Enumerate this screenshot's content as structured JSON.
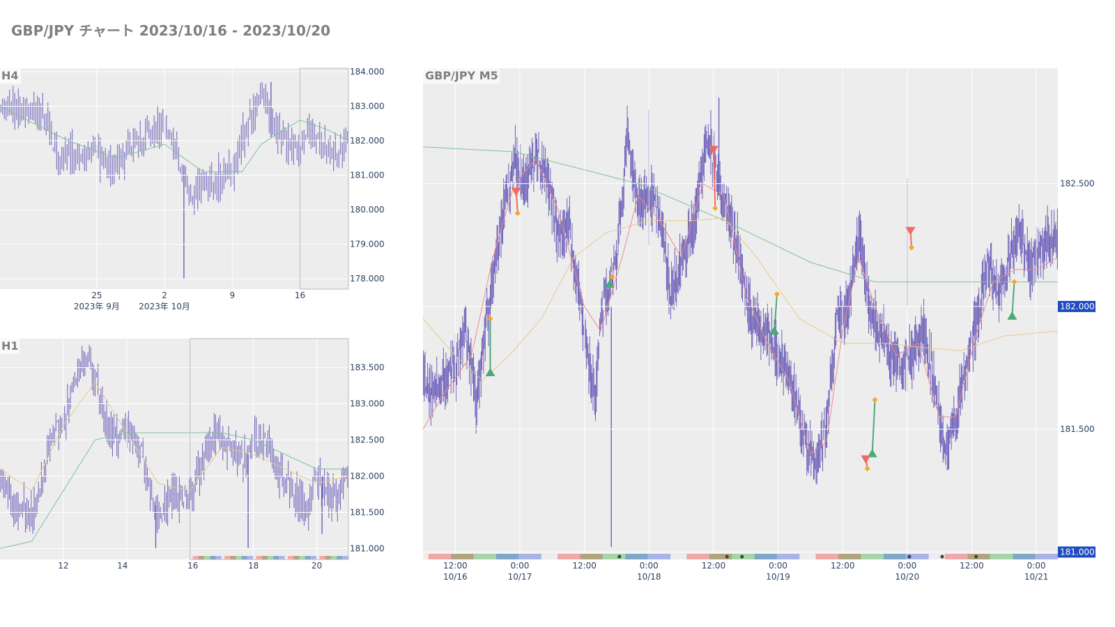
{
  "page": {
    "title": "GBP/JPY チャート 2023/10/16 - 2023/10/20"
  },
  "colors": {
    "panel_bg": "#ededed",
    "grid": "#ffffff",
    "candle": "#6a5db8",
    "ma_short": "#f08a8a",
    "ma_mid": "#e8c98a",
    "ma_long": "#7fbf9f",
    "buy_marker": "#4da87a",
    "sell_marker": "#ef6a62",
    "exit_marker": "#f5a623",
    "price_label_bg": "#1f4bbf",
    "session_colors": [
      "#f0a8a8",
      "#b2a47d",
      "#a8d5a8",
      "#7fa8c8",
      "#a8b4e8"
    ]
  },
  "chart_data": [
    {
      "type": "candlestick",
      "panel": "H4",
      "title": "H4",
      "y_ticks": [
        "178.000",
        "179.000",
        "180.000",
        "181.000",
        "182.000",
        "183.000",
        "184.000"
      ],
      "ylim": [
        177.7,
        184.1
      ],
      "x_tick_labels": [
        "25",
        "2",
        "9",
        "16"
      ],
      "x_month_labels": [
        "2023年 9月",
        "2023年 10月"
      ],
      "x_range": [
        "2023-09-15",
        "2023-10-21"
      ],
      "highlight_range": [
        "2023-10-16",
        "2023-10-21"
      ],
      "close_path": [
        [
          "2023-09-15",
          183.0
        ],
        [
          "2023-09-18",
          182.9
        ],
        [
          "2023-09-20",
          182.6
        ],
        [
          "2023-09-21",
          181.4
        ],
        [
          "2023-09-22",
          181.7
        ],
        [
          "2023-09-25",
          181.6
        ],
        [
          "2023-09-27",
          181.1
        ],
        [
          "2023-09-28",
          181.5
        ],
        [
          "2023-09-29",
          182.0
        ],
        [
          "2023-10-02",
          182.4
        ],
        [
          "2023-10-03",
          181.8
        ],
        [
          "2023-10-04",
          180.9
        ],
        [
          "2023-10-05",
          180.3
        ],
        [
          "2023-10-06",
          180.7
        ],
        [
          "2023-10-09",
          181.1
        ],
        [
          "2023-10-10",
          182.0
        ],
        [
          "2023-10-11",
          182.6
        ],
        [
          "2023-10-12",
          183.5
        ],
        [
          "2023-10-13",
          182.5
        ],
        [
          "2023-10-16",
          181.6
        ],
        [
          "2023-10-17",
          182.3
        ],
        [
          "2023-10-18",
          181.9
        ],
        [
          "2023-10-19",
          181.8
        ],
        [
          "2023-10-20",
          181.6
        ],
        [
          "2023-10-21",
          182.1
        ]
      ],
      "extreme_wicks": [
        {
          "x": "2023-10-04",
          "high": 181.3,
          "low": 178.0
        },
        {
          "x": "2023-10-13",
          "high": 183.7,
          "low": 182.1
        }
      ],
      "ma_long": [
        [
          "2023-09-15",
          183.0
        ],
        [
          "2023-09-22",
          182.0
        ],
        [
          "2023-09-27",
          181.5
        ],
        [
          "2023-10-02",
          181.9
        ],
        [
          "2023-10-06",
          181.1
        ],
        [
          "2023-10-10",
          181.1
        ],
        [
          "2023-10-12",
          181.9
        ],
        [
          "2023-10-16",
          182.6
        ],
        [
          "2023-10-19",
          182.3
        ],
        [
          "2023-10-21",
          182.0
        ]
      ]
    },
    {
      "type": "candlestick",
      "panel": "H1",
      "title": "H1",
      "y_ticks": [
        "181.000",
        "181.500",
        "182.000",
        "182.500",
        "183.000",
        "183.500"
      ],
      "ylim": [
        180.85,
        183.9
      ],
      "x_tick_labels": [
        "12",
        "14",
        "16",
        "18",
        "20"
      ],
      "x_range": [
        "2023-10-10",
        "2023-10-21"
      ],
      "highlight_range": [
        "2023-10-16",
        "2023-10-21"
      ],
      "close_path": [
        [
          "2023-10-10",
          182.0
        ],
        [
          "2023-10-10T12",
          181.6
        ],
        [
          "2023-10-11",
          181.5
        ],
        [
          "2023-10-11T08",
          181.9
        ],
        [
          "2023-10-11T16",
          182.6
        ],
        [
          "2023-10-12",
          182.7
        ],
        [
          "2023-10-12T12",
          183.6
        ],
        [
          "2023-10-13",
          183.4
        ],
        [
          "2023-10-13T08",
          182.8
        ],
        [
          "2023-10-13T16",
          182.5
        ],
        [
          "2023-10-14",
          182.7
        ],
        [
          "2023-10-14T12",
          182.3
        ],
        [
          "2023-10-14T20",
          181.6
        ],
        [
          "2023-10-15",
          181.5
        ],
        [
          "2023-10-15T12",
          181.7
        ],
        [
          "2023-10-16",
          181.7
        ],
        [
          "2023-10-16T12",
          182.3
        ],
        [
          "2023-10-16T20",
          182.6
        ],
        [
          "2023-10-17T06",
          182.4
        ],
        [
          "2023-10-17T18",
          182.2
        ],
        [
          "2023-10-18",
          182.5
        ],
        [
          "2023-10-18T12",
          182.4
        ],
        [
          "2023-10-18T20",
          182.0
        ],
        [
          "2023-10-19T06",
          181.8
        ],
        [
          "2023-10-19T18",
          181.5
        ],
        [
          "2023-10-20",
          182.0
        ],
        [
          "2023-10-20T06",
          181.8
        ],
        [
          "2023-10-20T16",
          181.7
        ],
        [
          "2023-10-21",
          182.2
        ]
      ],
      "extreme_wicks": [
        {
          "x": "2023-10-14T22",
          "high": 181.6,
          "low": 181.0
        },
        {
          "x": "2023-10-17T20",
          "high": 182.3,
          "low": 181.0
        },
        {
          "x": "2023-10-20T04",
          "high": 182.0,
          "low": 181.2
        }
      ],
      "ma_mid": [
        [
          "2023-10-10",
          182.1
        ],
        [
          "2023-10-11",
          181.8
        ],
        [
          "2023-10-12",
          182.7
        ],
        [
          "2023-10-13",
          183.3
        ],
        [
          "2023-10-14",
          182.6
        ],
        [
          "2023-10-15",
          181.9
        ],
        [
          "2023-10-16",
          181.8
        ],
        [
          "2023-10-17",
          182.4
        ],
        [
          "2023-10-18",
          182.3
        ],
        [
          "2023-10-19",
          182.1
        ],
        [
          "2023-10-20",
          181.9
        ],
        [
          "2023-10-21",
          182.0
        ]
      ],
      "ma_long": [
        [
          "2023-10-10",
          181.0
        ],
        [
          "2023-10-11",
          181.1
        ],
        [
          "2023-10-12",
          181.8
        ],
        [
          "2023-10-13",
          182.5
        ],
        [
          "2023-10-14",
          182.6
        ],
        [
          "2023-10-15",
          182.6
        ],
        [
          "2023-10-16",
          182.6
        ],
        [
          "2023-10-17",
          182.6
        ],
        [
          "2023-10-18",
          182.5
        ],
        [
          "2023-10-19",
          182.3
        ],
        [
          "2023-10-20",
          182.1
        ],
        [
          "2023-10-21",
          182.1
        ]
      ]
    },
    {
      "type": "candlestick",
      "panel": "M5",
      "title": "GBP/JPY M5",
      "y_ticks": [
        "181.000",
        "181.500",
        "182.000",
        "182.500"
      ],
      "highlight_ticks": [
        "181.000",
        "182.000"
      ],
      "ylim": [
        180.97,
        182.97
      ],
      "x_ticks": [
        {
          "label": "12:00",
          "sub": "10/16"
        },
        {
          "label": "0:00",
          "sub": "10/17"
        },
        {
          "label": "12:00",
          "sub": ""
        },
        {
          "label": "0:00",
          "sub": "10/18"
        },
        {
          "label": "12:00",
          "sub": ""
        },
        {
          "label": "0:00",
          "sub": "10/19"
        },
        {
          "label": "12:00",
          "sub": ""
        },
        {
          "label": "0:00",
          "sub": "10/20"
        },
        {
          "label": "12:00",
          "sub": ""
        },
        {
          "label": "0:00",
          "sub": "10/21"
        }
      ],
      "x_range_hours": [
        0,
        118
      ],
      "close_path": [
        [
          0,
          181.75
        ],
        [
          1,
          181.65
        ],
        [
          3,
          181.68
        ],
        [
          6,
          181.75
        ],
        [
          8,
          181.9
        ],
        [
          10,
          181.6
        ],
        [
          11,
          181.8
        ],
        [
          13,
          182.1
        ],
        [
          15,
          182.4
        ],
        [
          17,
          182.6
        ],
        [
          19,
          182.5
        ],
        [
          21,
          182.62
        ],
        [
          23,
          182.55
        ],
        [
          25,
          182.3
        ],
        [
          27,
          182.35
        ],
        [
          30,
          181.9
        ],
        [
          32,
          181.6
        ],
        [
          33,
          181.95
        ],
        [
          36,
          182.2
        ],
        [
          38,
          182.7
        ],
        [
          40,
          182.4
        ],
        [
          42,
          182.45
        ],
        [
          44,
          182.4
        ],
        [
          46,
          182.05
        ],
        [
          48,
          182.2
        ],
        [
          50,
          182.3
        ],
        [
          53,
          182.7
        ],
        [
          55,
          182.5
        ],
        [
          57,
          182.35
        ],
        [
          59,
          182.2
        ],
        [
          61,
          181.95
        ],
        [
          63,
          181.9
        ],
        [
          65,
          181.85
        ],
        [
          67,
          181.75
        ],
        [
          69,
          181.65
        ],
        [
          71,
          181.45
        ],
        [
          73,
          181.35
        ],
        [
          75,
          181.5
        ],
        [
          77,
          181.95
        ],
        [
          79,
          182.0
        ],
        [
          81,
          182.3
        ],
        [
          83,
          182.0
        ],
        [
          85,
          181.9
        ],
        [
          87,
          181.8
        ],
        [
          89,
          181.75
        ],
        [
          91,
          181.8
        ],
        [
          93,
          181.9
        ],
        [
          95,
          181.7
        ],
        [
          97,
          181.4
        ],
        [
          99,
          181.55
        ],
        [
          101,
          181.75
        ],
        [
          103,
          181.95
        ],
        [
          105,
          182.2
        ],
        [
          107,
          182.05
        ],
        [
          109,
          182.2
        ],
        [
          111,
          182.3
        ],
        [
          113,
          182.15
        ],
        [
          115,
          182.25
        ],
        [
          118,
          182.28
        ]
      ],
      "extreme_wicks": [
        {
          "x": 35,
          "high": 182.0,
          "low": 181.02
        },
        {
          "x": 42,
          "high": 182.8,
          "low": 182.25
        },
        {
          "x": 55,
          "high": 182.85,
          "low": 182.45
        },
        {
          "x": 90,
          "high": 182.52,
          "low": 182.0
        }
      ],
      "ma_short": [
        [
          0,
          181.5
        ],
        [
          4,
          181.65
        ],
        [
          9,
          181.8
        ],
        [
          13,
          182.2
        ],
        [
          17,
          182.5
        ],
        [
          21,
          182.6
        ],
        [
          25,
          182.4
        ],
        [
          30,
          182.0
        ],
        [
          33,
          181.9
        ],
        [
          37,
          182.2
        ],
        [
          40,
          182.45
        ],
        [
          44,
          182.35
        ],
        [
          48,
          182.2
        ],
        [
          52,
          182.5
        ],
        [
          56,
          182.45
        ],
        [
          60,
          182.05
        ],
        [
          64,
          181.85
        ],
        [
          68,
          181.7
        ],
        [
          72,
          181.4
        ],
        [
          75,
          181.45
        ],
        [
          78,
          181.9
        ],
        [
          81,
          182.2
        ],
        [
          84,
          182.0
        ],
        [
          88,
          181.8
        ],
        [
          92,
          181.85
        ],
        [
          96,
          181.55
        ],
        [
          99,
          181.55
        ],
        [
          103,
          181.9
        ],
        [
          106,
          182.1
        ],
        [
          110,
          182.15
        ],
        [
          114,
          182.15
        ],
        [
          118,
          182.2
        ]
      ],
      "ma_mid": [
        [
          0,
          181.95
        ],
        [
          6,
          181.8
        ],
        [
          11,
          181.7
        ],
        [
          16,
          181.8
        ],
        [
          22,
          181.95
        ],
        [
          28,
          182.2
        ],
        [
          34,
          182.3
        ],
        [
          42,
          182.35
        ],
        [
          50,
          182.35
        ],
        [
          56,
          182.36
        ],
        [
          62,
          182.2
        ],
        [
          70,
          181.95
        ],
        [
          78,
          181.85
        ],
        [
          86,
          181.85
        ],
        [
          94,
          181.83
        ],
        [
          100,
          181.82
        ],
        [
          108,
          181.88
        ],
        [
          118,
          181.9
        ]
      ],
      "ma_long": [
        [
          0,
          182.65
        ],
        [
          17,
          182.63
        ],
        [
          40,
          182.5
        ],
        [
          56,
          182.35
        ],
        [
          72,
          182.18
        ],
        [
          84,
          182.1
        ],
        [
          96,
          182.1
        ],
        [
          108,
          182.1
        ],
        [
          118,
          182.1
        ]
      ],
      "buy_signals": [
        {
          "entry": [
            12.5,
            181.73
          ],
          "exit": [
            12.5,
            181.95
          ]
        },
        {
          "entry": [
            34.7,
            182.09
          ],
          "exit": [
            35.2,
            182.12
          ]
        },
        {
          "entry": [
            65.3,
            181.9
          ],
          "exit": [
            65.8,
            182.05
          ]
        },
        {
          "entry": [
            83.5,
            181.4
          ],
          "exit": [
            84.0,
            181.62
          ]
        },
        {
          "entry": [
            109.5,
            181.96
          ],
          "exit": [
            109.9,
            182.1
          ]
        }
      ],
      "sell_signals": [
        {
          "entry": [
            17.3,
            182.47
          ],
          "exit": [
            17.6,
            182.38
          ]
        },
        {
          "entry": [
            54.0,
            182.64
          ],
          "exit": [
            54.3,
            182.4
          ]
        },
        {
          "entry": [
            82.3,
            181.38
          ],
          "exit": [
            82.6,
            181.34
          ]
        },
        {
          "entry": [
            90.6,
            182.31
          ],
          "exit": [
            90.8,
            182.24
          ]
        }
      ],
      "session_bars": [
        {
          "start": 1,
          "end": 22
        },
        {
          "start": 25,
          "end": 46
        },
        {
          "start": 49,
          "end": 70
        },
        {
          "start": 73,
          "end": 94
        },
        {
          "start": 97,
          "end": 118
        }
      ],
      "session_dots": [
        36.5,
        56.5,
        59.3,
        90.4,
        96.5,
        102.8
      ]
    }
  ]
}
